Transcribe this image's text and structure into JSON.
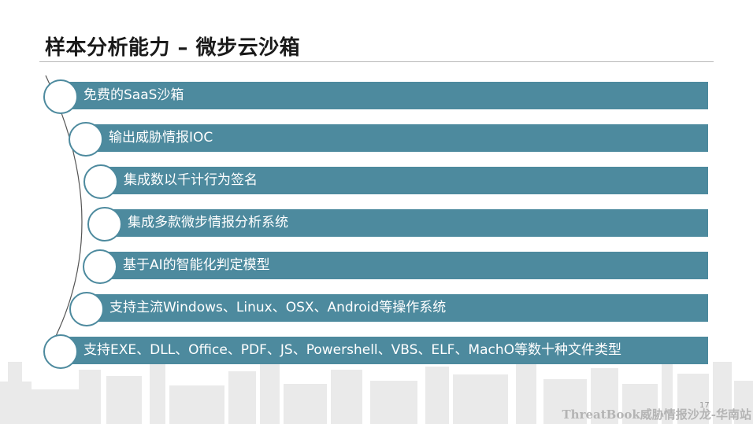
{
  "slide": {
    "title": "样本分析能力 – 微步云沙箱",
    "items": [
      {
        "label": "免费的SaaS沙箱"
      },
      {
        "label": "输出威胁情报IOC"
      },
      {
        "label": "集成数以千计行为签名"
      },
      {
        "label": "集成多款微步情报分析系统"
      },
      {
        "label": "基于AI的智能化判定模型"
      },
      {
        "label": "支持主流Windows、Linux、OSX、Android等操作系统"
      },
      {
        "label": "支持EXE、DLL、Office、PDF、JS、Powershell、VBS、ELF、MachO等数十种文件类型"
      }
    ],
    "footer": "ThreatBook威胁情报沙龙-华南站",
    "page_number": "17"
  },
  "colors": {
    "bar": "#4d8a9e",
    "circle_border": "#4d8a9e",
    "title": "#1a1a1a"
  }
}
